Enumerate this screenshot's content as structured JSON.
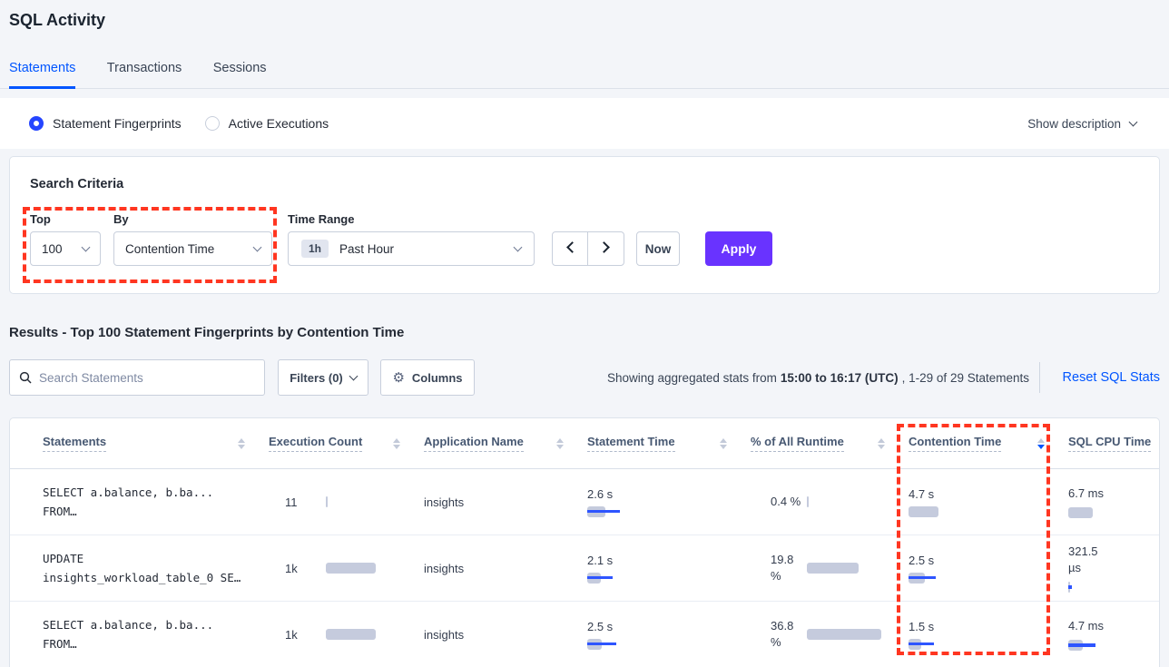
{
  "page": {
    "title": "SQL Activity"
  },
  "tabs": [
    {
      "label": "Statements",
      "active": true
    },
    {
      "label": "Transactions",
      "active": false
    },
    {
      "label": "Sessions",
      "active": false
    }
  ],
  "view_toggle": {
    "options": [
      {
        "label": "Statement Fingerprints",
        "selected": true
      },
      {
        "label": "Active Executions",
        "selected": false
      }
    ],
    "show_description_label": "Show description"
  },
  "search_criteria": {
    "heading": "Search Criteria",
    "top": {
      "label": "Top",
      "value": "100"
    },
    "by": {
      "label": "By",
      "value": "Contention Time"
    },
    "time_range": {
      "label": "Time Range",
      "badge": "1h",
      "value": "Past Hour"
    },
    "now_label": "Now",
    "apply_label": "Apply"
  },
  "results": {
    "heading": "Results - Top 100 Statement Fingerprints by Contention Time",
    "search_placeholder": "Search Statements",
    "filters_label": "Filters (0)",
    "columns_label": "Columns",
    "stats_prefix": "Showing aggregated stats from",
    "stats_bold": "15:00 to 16:17 (UTC)",
    "stats_suffix": ", 1-29 of 29 Statements",
    "reset_label": "Reset SQL Stats"
  },
  "icons": {
    "search": "magnifier",
    "columns": "gear",
    "filters": "chevron-down",
    "show_description": "chevron-down",
    "time_prev": "chevron-left",
    "time_next": "chevron-right",
    "sort": "up-down-triangles"
  },
  "table": {
    "headers": [
      {
        "label": "Statements",
        "sortable": true
      },
      {
        "label": "Execution Count",
        "sortable": true
      },
      {
        "label": "Application Name",
        "sortable": true
      },
      {
        "label": "Statement Time",
        "sortable": true
      },
      {
        "label": "% of All Runtime",
        "sortable": true
      },
      {
        "label": "Contention Time",
        "sortable": true,
        "sorted": "desc"
      },
      {
        "label": "SQL CPU Time",
        "sortable": false
      }
    ],
    "rows": [
      {
        "statement_lines": [
          "SELECT a.balance, b.ba...",
          "FROM…"
        ],
        "execution_count": "11",
        "execution_bar": {
          "gray": 2,
          "blue": 0
        },
        "application": "insights",
        "statement_time": "2.6 s",
        "statement_time_bar": {
          "gray": 20,
          "blue": 36
        },
        "runtime_pct_lines": [
          "0.4 %"
        ],
        "runtime_bar": {
          "gray": 2,
          "blue": 0
        },
        "contention_time": "4.7 s",
        "contention_bar": {
          "gray": 33,
          "blue": 0
        },
        "sql_cpu_lines": [
          "6.7 ms"
        ],
        "sql_cpu_bar": {
          "gray": 27,
          "blue": 0
        }
      },
      {
        "statement_lines": [
          "UPDATE",
          "insights_workload_table_0 SE…"
        ],
        "execution_count": "1k",
        "execution_bar": {
          "gray": 55,
          "blue": 0
        },
        "application": "insights",
        "statement_time": "2.1 s",
        "statement_time_bar": {
          "gray": 15,
          "blue": 28
        },
        "runtime_pct_lines": [
          "19.8",
          "%"
        ],
        "runtime_bar": {
          "gray": 57,
          "blue": 0
        },
        "contention_time": "2.5 s",
        "contention_bar": {
          "gray": 18,
          "blue": 30
        },
        "sql_cpu_lines": [
          "321.5",
          "µs"
        ],
        "sql_cpu_bar": {
          "gray": 2,
          "blue": 4
        }
      },
      {
        "statement_lines": [
          "SELECT a.balance, b.ba...",
          "FROM…"
        ],
        "execution_count": "1k",
        "execution_bar": {
          "gray": 55,
          "blue": 0
        },
        "application": "insights",
        "statement_time": "2.5 s",
        "statement_time_bar": {
          "gray": 16,
          "blue": 32
        },
        "runtime_pct_lines": [
          "36.8",
          "%"
        ],
        "runtime_bar": {
          "gray": 82,
          "blue": 0
        },
        "contention_time": "1.5 s",
        "contention_bar": {
          "gray": 14,
          "blue": 28
        },
        "sql_cpu_lines": [
          "4.7 ms"
        ],
        "sql_cpu_bar": {
          "gray": 16,
          "blue": 30
        }
      }
    ]
  },
  "annotations": {
    "color": "#ff3621",
    "regions": [
      "top-by-selectors",
      "contention-time-column"
    ]
  },
  "colors": {
    "accent_blue": "#0055ff",
    "apply_purple": "#6933ff",
    "bar_gray": "#c5cbdd",
    "bar_blue": "#2e55ff",
    "background": "#f3f5f9"
  }
}
